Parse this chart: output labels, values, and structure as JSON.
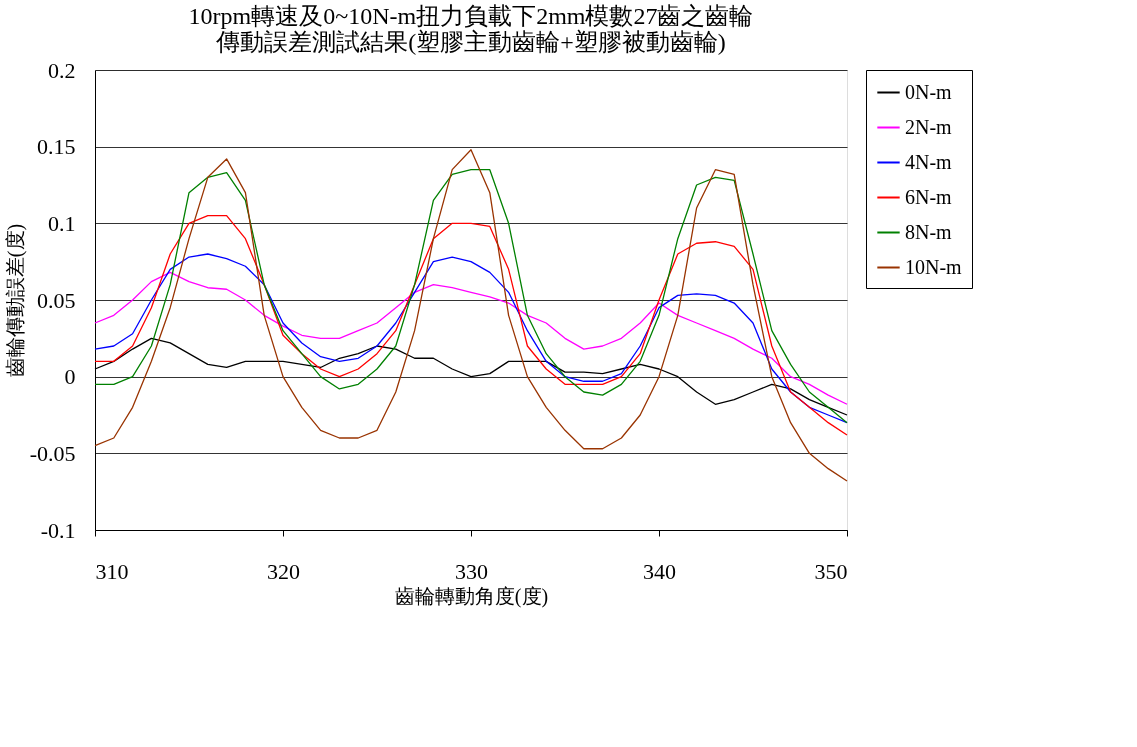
{
  "chart_data": {
    "type": "line",
    "title": [
      "10rpm轉速及0~10N-m扭力負載下2mm模數27齒之齒輪",
      "傳動誤差測試結果(塑膠主動齒輪+塑膠被動齒輪)"
    ],
    "xlabel": "齒輪轉動角度(度)",
    "ylabel": "齒輪傳動誤差(度)",
    "x": [
      310,
      311,
      312,
      313,
      314,
      315,
      316,
      317,
      318,
      319,
      320,
      321,
      322,
      323,
      324,
      325,
      326,
      327,
      328,
      329,
      330,
      331,
      332,
      333,
      334,
      335,
      336,
      337,
      338,
      339,
      340,
      341,
      342,
      343,
      344,
      345,
      346,
      347,
      348,
      349,
      350
    ],
    "series": [
      {
        "name": "0N-m",
        "color": "#000000",
        "values": [
          0.005,
          0.01,
          0.018,
          0.025,
          0.022,
          0.015,
          0.008,
          0.006,
          0.01,
          0.01,
          0.01,
          0.008,
          0.006,
          0.012,
          0.015,
          0.02,
          0.018,
          0.012,
          0.012,
          0.005,
          0.0,
          0.002,
          0.01,
          0.01,
          0.01,
          0.003,
          0.003,
          0.002,
          0.005,
          0.008,
          0.005,
          0.0,
          -0.01,
          -0.018,
          -0.015,
          -0.01,
          -0.005,
          -0.008,
          -0.015,
          -0.02,
          -0.025
        ]
      },
      {
        "name": "2N-m",
        "color": "#ff00ff",
        "values": [
          0.035,
          0.04,
          0.05,
          0.062,
          0.068,
          0.062,
          0.058,
          0.057,
          0.05,
          0.04,
          0.033,
          0.027,
          0.025,
          0.025,
          0.03,
          0.035,
          0.045,
          0.055,
          0.06,
          0.058,
          0.055,
          0.052,
          0.048,
          0.04,
          0.035,
          0.025,
          0.018,
          0.02,
          0.025,
          0.035,
          0.048,
          0.04,
          0.035,
          0.03,
          0.025,
          0.018,
          0.012,
          0.0,
          -0.005,
          -0.012,
          -0.018
        ]
      },
      {
        "name": "4N-m",
        "color": "#0000ff",
        "values": [
          0.018,
          0.02,
          0.028,
          0.05,
          0.07,
          0.078,
          0.08,
          0.077,
          0.072,
          0.06,
          0.035,
          0.022,
          0.013,
          0.01,
          0.012,
          0.02,
          0.035,
          0.055,
          0.075,
          0.078,
          0.075,
          0.068,
          0.055,
          0.03,
          0.01,
          0.0,
          -0.003,
          -0.003,
          0.002,
          0.02,
          0.045,
          0.053,
          0.054,
          0.053,
          0.048,
          0.035,
          0.005,
          -0.01,
          -0.02,
          -0.025,
          -0.03
        ]
      },
      {
        "name": "6N-m",
        "color": "#ff0000",
        "values": [
          0.01,
          0.01,
          0.02,
          0.045,
          0.08,
          0.1,
          0.105,
          0.105,
          0.09,
          0.06,
          0.027,
          0.015,
          0.005,
          0.0,
          0.005,
          0.015,
          0.03,
          0.06,
          0.09,
          0.1,
          0.1,
          0.098,
          0.07,
          0.02,
          0.005,
          -0.005,
          -0.005,
          -0.005,
          0.0,
          0.015,
          0.05,
          0.08,
          0.087,
          0.088,
          0.085,
          0.07,
          0.02,
          -0.01,
          -0.02,
          -0.03,
          -0.038
        ]
      },
      {
        "name": "8N-m",
        "color": "#008000",
        "values": [
          -0.005,
          -0.005,
          0.0,
          0.02,
          0.06,
          0.12,
          0.13,
          0.133,
          0.115,
          0.06,
          0.03,
          0.015,
          0.0,
          -0.008,
          -0.005,
          0.005,
          0.02,
          0.06,
          0.115,
          0.132,
          0.135,
          0.135,
          0.1,
          0.04,
          0.015,
          0.0,
          -0.01,
          -0.012,
          -0.005,
          0.01,
          0.04,
          0.09,
          0.125,
          0.13,
          0.128,
          0.08,
          0.03,
          0.008,
          -0.01,
          -0.02,
          -0.03
        ]
      },
      {
        "name": "10N-m",
        "color": "#993300",
        "values": [
          -0.045,
          -0.04,
          -0.02,
          0.01,
          0.045,
          0.09,
          0.13,
          0.142,
          0.12,
          0.04,
          0.0,
          -0.02,
          -0.035,
          -0.04,
          -0.04,
          -0.035,
          -0.01,
          0.03,
          0.09,
          0.135,
          0.148,
          0.12,
          0.04,
          0.0,
          -0.02,
          -0.035,
          -0.047,
          -0.047,
          -0.04,
          -0.025,
          0.0,
          0.04,
          0.11,
          0.135,
          0.132,
          0.06,
          0.0,
          -0.03,
          -0.05,
          -0.06,
          -0.068
        ]
      }
    ],
    "xlim": [
      310,
      350
    ],
    "xticks": [
      310,
      320,
      330,
      340,
      350
    ],
    "ylim": [
      -0.1,
      0.2
    ],
    "yticks": [
      -0.1,
      -0.05,
      0,
      0.05,
      0.1,
      0.15,
      0.2
    ],
    "grid": "y",
    "legend": "right",
    "marker": "none",
    "line_style": "solid"
  }
}
